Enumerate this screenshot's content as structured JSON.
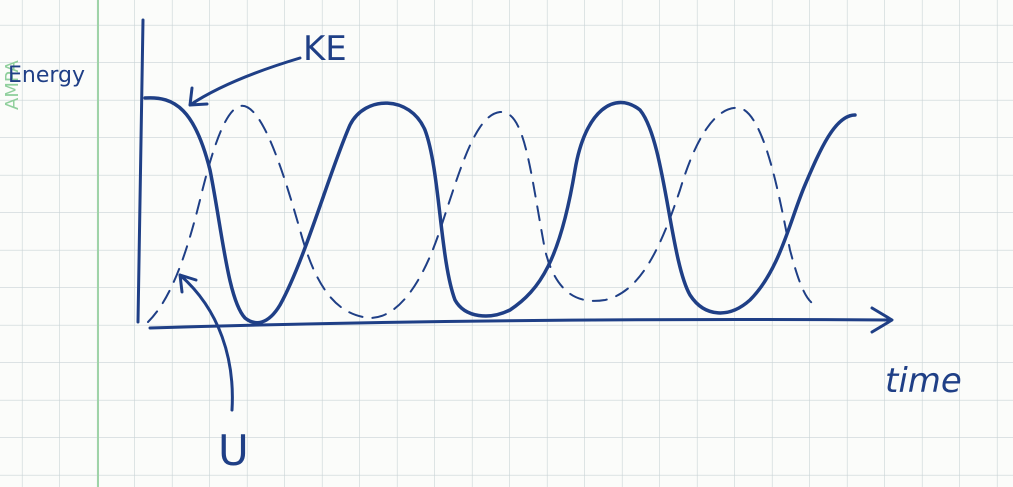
{
  "logo": "AMPA",
  "labels": {
    "y_axis": "Energy",
    "x_axis": "time",
    "kinetic": "KE",
    "potential": "U"
  }
}
